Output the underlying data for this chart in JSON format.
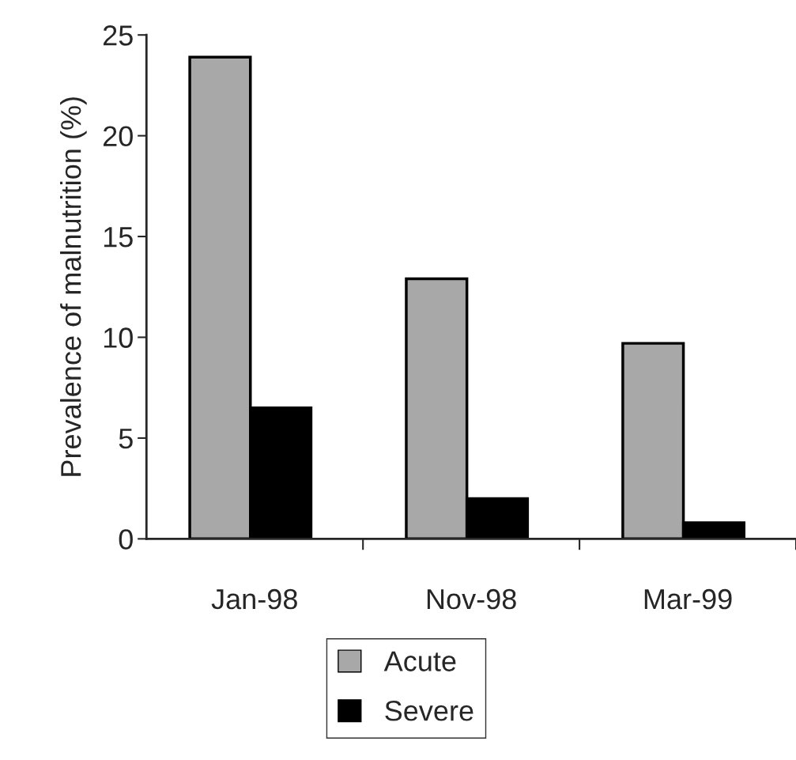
{
  "chart_data": {
    "type": "bar",
    "ylabel": "Prevalence of malnutrition (%)",
    "categories": [
      "Jan-98",
      "Nov-98",
      "Mar-99"
    ],
    "series": [
      {
        "name": "Acute",
        "color": "#a8a8a8",
        "values": [
          23.9,
          12.9,
          9.7
        ]
      },
      {
        "name": "Severe",
        "color": "#000000",
        "values": [
          6.5,
          2.0,
          0.8
        ]
      }
    ],
    "ylim": [
      0,
      25
    ],
    "yticks": [
      0,
      5,
      10,
      15,
      20,
      25
    ],
    "grid": false,
    "legend": "bottom"
  }
}
